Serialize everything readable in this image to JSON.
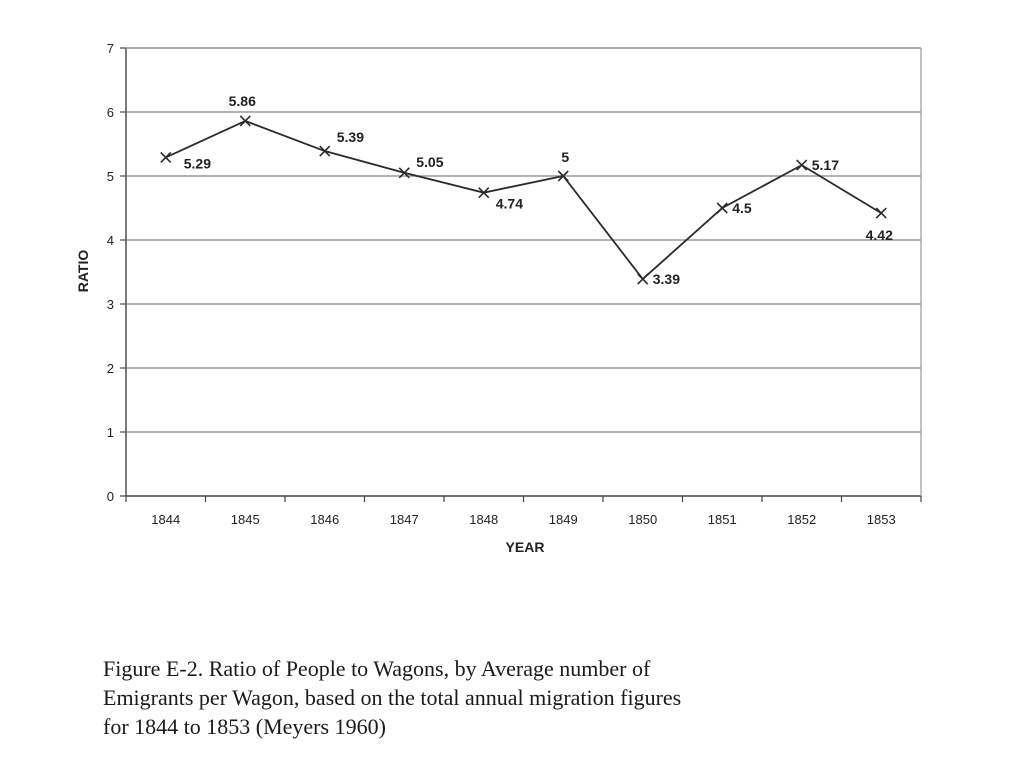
{
  "chart_data": {
    "type": "line",
    "title": "",
    "xlabel": "YEAR",
    "ylabel": "RATIO",
    "categories": [
      "1844",
      "1845",
      "1846",
      "1847",
      "1848",
      "1849",
      "1850",
      "1851",
      "1852",
      "1853"
    ],
    "values": [
      5.29,
      5.86,
      5.39,
      5.05,
      4.74,
      5,
      3.39,
      4.5,
      5.17,
      4.42
    ],
    "data_labels": [
      "5.29",
      "5.86",
      "5.39",
      "5.05",
      "4.74",
      "5",
      "3.39",
      "4.5",
      "5.17",
      "4.42"
    ],
    "yticks": [
      "0",
      "1",
      "2",
      "3",
      "4",
      "5",
      "6",
      "7"
    ],
    "ylim": [
      0,
      7
    ],
    "grid": true,
    "marker": "x",
    "line_color": "#2a2a2a"
  },
  "caption": {
    "lines": [
      "Figure E-2.  Ratio of People to Wagons, by Average number of",
      "Emigrants per Wagon, based on the total annual migration figures",
      "for 1844 to 1853 (Meyers 1960)"
    ]
  }
}
